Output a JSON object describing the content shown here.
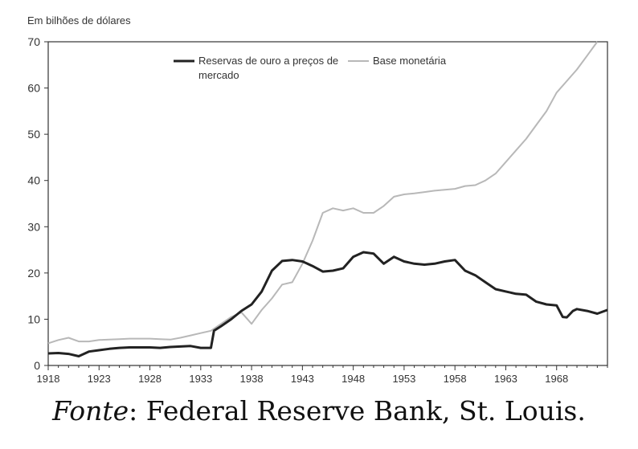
{
  "chart_data": {
    "type": "line",
    "unit_label": "Em bilhões de dólares",
    "ylim": [
      0,
      70
    ],
    "y_ticks": [
      0,
      10,
      20,
      30,
      40,
      50,
      60,
      70
    ],
    "xlim": [
      1918,
      1973
    ],
    "x_ticks": [
      1918,
      1923,
      1928,
      1933,
      1938,
      1943,
      1948,
      1953,
      1958,
      1963,
      1968
    ],
    "grid": false,
    "legend_position": "top-center",
    "series": [
      {
        "name": "Reservas de ouro a preços de mercado",
        "color": "#222222",
        "points": [
          [
            1918,
            2.6
          ],
          [
            1919,
            2.7
          ],
          [
            1920,
            2.5
          ],
          [
            1921,
            2.0
          ],
          [
            1922,
            3.0
          ],
          [
            1923,
            3.3
          ],
          [
            1924,
            3.6
          ],
          [
            1925,
            3.8
          ],
          [
            1926,
            3.9
          ],
          [
            1927,
            3.9
          ],
          [
            1928,
            3.9
          ],
          [
            1929,
            3.8
          ],
          [
            1930,
            4.0
          ],
          [
            1931,
            4.1
          ],
          [
            1932,
            4.2
          ],
          [
            1933,
            3.8
          ],
          [
            1934,
            3.8
          ],
          [
            1934.3,
            7.5
          ],
          [
            1935,
            8.5
          ],
          [
            1936,
            10.0
          ],
          [
            1937,
            11.8
          ],
          [
            1938,
            13.2
          ],
          [
            1939,
            16.0
          ],
          [
            1940,
            20.5
          ],
          [
            1941,
            22.6
          ],
          [
            1942,
            22.8
          ],
          [
            1943,
            22.5
          ],
          [
            1944,
            21.5
          ],
          [
            1945,
            20.3
          ],
          [
            1946,
            20.5
          ],
          [
            1947,
            21.0
          ],
          [
            1948,
            23.5
          ],
          [
            1949,
            24.5
          ],
          [
            1950,
            24.2
          ],
          [
            1951,
            22.0
          ],
          [
            1952,
            23.5
          ],
          [
            1953,
            22.5
          ],
          [
            1954,
            22.0
          ],
          [
            1955,
            21.8
          ],
          [
            1956,
            22.0
          ],
          [
            1957,
            22.5
          ],
          [
            1958,
            22.8
          ],
          [
            1959,
            20.5
          ],
          [
            1960,
            19.5
          ],
          [
            1961,
            18.0
          ],
          [
            1962,
            16.5
          ],
          [
            1963,
            16.0
          ],
          [
            1964,
            15.5
          ],
          [
            1965,
            15.3
          ],
          [
            1966,
            13.8
          ],
          [
            1967,
            13.2
          ],
          [
            1968,
            13.0
          ],
          [
            1968.6,
            10.5
          ],
          [
            1969,
            10.4
          ],
          [
            1969.6,
            11.8
          ],
          [
            1970,
            12.2
          ],
          [
            1971,
            11.8
          ],
          [
            1972,
            11.2
          ],
          [
            1973,
            12.0
          ]
        ]
      },
      {
        "name": "Base monetária",
        "color": "#b8b8b8",
        "points": [
          [
            1918,
            4.8
          ],
          [
            1919,
            5.5
          ],
          [
            1920,
            6.0
          ],
          [
            1921,
            5.2
          ],
          [
            1922,
            5.2
          ],
          [
            1923,
            5.5
          ],
          [
            1924,
            5.6
          ],
          [
            1925,
            5.7
          ],
          [
            1926,
            5.8
          ],
          [
            1927,
            5.8
          ],
          [
            1928,
            5.8
          ],
          [
            1929,
            5.7
          ],
          [
            1930,
            5.6
          ],
          [
            1931,
            6.0
          ],
          [
            1932,
            6.5
          ],
          [
            1933,
            7.0
          ],
          [
            1934,
            7.5
          ],
          [
            1935,
            9.0
          ],
          [
            1936,
            10.5
          ],
          [
            1937,
            11.5
          ],
          [
            1938,
            9.0
          ],
          [
            1939,
            12.0
          ],
          [
            1940,
            14.5
          ],
          [
            1941,
            17.5
          ],
          [
            1942,
            18.0
          ],
          [
            1943,
            22.0
          ],
          [
            1944,
            27.0
          ],
          [
            1945,
            33.0
          ],
          [
            1946,
            34.0
          ],
          [
            1947,
            33.5
          ],
          [
            1948,
            34.0
          ],
          [
            1949,
            33.0
          ],
          [
            1950,
            33.0
          ],
          [
            1951,
            34.5
          ],
          [
            1952,
            36.5
          ],
          [
            1953,
            37.0
          ],
          [
            1954,
            37.2
          ],
          [
            1955,
            37.5
          ],
          [
            1956,
            37.8
          ],
          [
            1957,
            38.0
          ],
          [
            1958,
            38.2
          ],
          [
            1959,
            38.8
          ],
          [
            1960,
            39.0
          ],
          [
            1961,
            40.0
          ],
          [
            1962,
            41.5
          ],
          [
            1963,
            44.0
          ],
          [
            1964,
            46.5
          ],
          [
            1965,
            49.0
          ],
          [
            1966,
            52.0
          ],
          [
            1967,
            55.0
          ],
          [
            1968,
            59.0
          ],
          [
            1969,
            61.5
          ],
          [
            1970,
            64.0
          ],
          [
            1971,
            67.0
          ],
          [
            1972,
            70.0
          ]
        ]
      }
    ]
  },
  "source": {
    "prefix": "Fonte",
    "text": ": Federal Reserve Bank, St. Louis."
  }
}
